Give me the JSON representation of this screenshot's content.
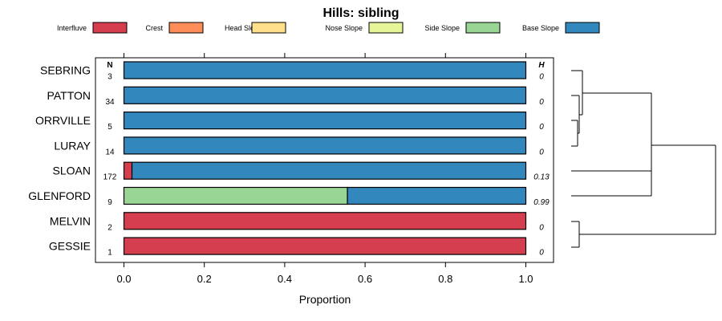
{
  "chart_data": {
    "type": "bar",
    "stacked": true,
    "orientation": "horizontal",
    "title": "Hills: sibling",
    "xlabel": "Proportion",
    "ylabel": "",
    "xlim": [
      0,
      1
    ],
    "x_ticks": [
      "0.0",
      "0.2",
      "0.4",
      "0.6",
      "0.8",
      "1.0"
    ],
    "n_header": "N",
    "h_header": "H",
    "legend": [
      {
        "name": "Interfluve",
        "color": "#d53e4f"
      },
      {
        "name": "Crest",
        "color": "#fc8d59"
      },
      {
        "name": "Head Slope",
        "color": "#fee08b"
      },
      {
        "name": "Nose Slope",
        "color": "#e6f598"
      },
      {
        "name": "Side Slope",
        "color": "#99d594"
      },
      {
        "name": "Base Slope",
        "color": "#3288bd"
      }
    ],
    "categories": [
      "SEBRING",
      "PATTON",
      "ORRVILLE",
      "LURAY",
      "SLOAN",
      "GLENFORD",
      "MELVIN",
      "GESSIE"
    ],
    "n_values": [
      "3",
      "34",
      "5",
      "14",
      "172",
      "9",
      "2",
      "1"
    ],
    "h_values": [
      "0",
      "0",
      "0",
      "0",
      "0.13",
      "0.99",
      "0",
      "0"
    ],
    "series": [
      {
        "name": "Interfluve",
        "values": [
          0,
          0,
          0,
          0,
          0.02,
          0,
          1,
          1
        ]
      },
      {
        "name": "Crest",
        "values": [
          0,
          0,
          0,
          0,
          0,
          0,
          0,
          0
        ]
      },
      {
        "name": "Head Slope",
        "values": [
          0,
          0,
          0,
          0,
          0,
          0,
          0,
          0
        ]
      },
      {
        "name": "Nose Slope",
        "values": [
          0,
          0,
          0,
          0,
          0,
          0,
          0,
          0
        ]
      },
      {
        "name": "Side Slope",
        "values": [
          0,
          0,
          0,
          0,
          0,
          0.556,
          0,
          0
        ]
      },
      {
        "name": "Base Slope",
        "values": [
          1,
          1,
          1,
          1,
          0.98,
          0.444,
          0,
          0
        ]
      }
    ],
    "dendrogram": {
      "type": "dendrogram",
      "orientation": "right",
      "merges": [
        {
          "left": "LURAY",
          "right": "ORRVILLE",
          "height": 0.02
        },
        {
          "left": "MELVIN",
          "right": "GESSIE",
          "height": 0.05
        },
        {
          "left": "PATTON",
          "right": "LURAY+ORRVILLE",
          "height": 0.04
        },
        {
          "left": "SEBRING",
          "right": "PATTON+LURAY+ORRVILLE",
          "height": 0.07
        },
        {
          "left": "SEBRING+PATTON+LURAY+ORRVILLE",
          "right": "SLOAN",
          "height": 0.47
        },
        {
          "left": "SEBRING+PATTON+LURAY+ORRVILLE+SLOAN",
          "right": "GLENFORD",
          "height": 0.47
        },
        {
          "left": "SEBRING+PATTON+LURAY+ORRVILLE+SLOAN+GLENFORD",
          "right": "MELVIN+GESSIE",
          "height": 0.85
        }
      ]
    }
  }
}
